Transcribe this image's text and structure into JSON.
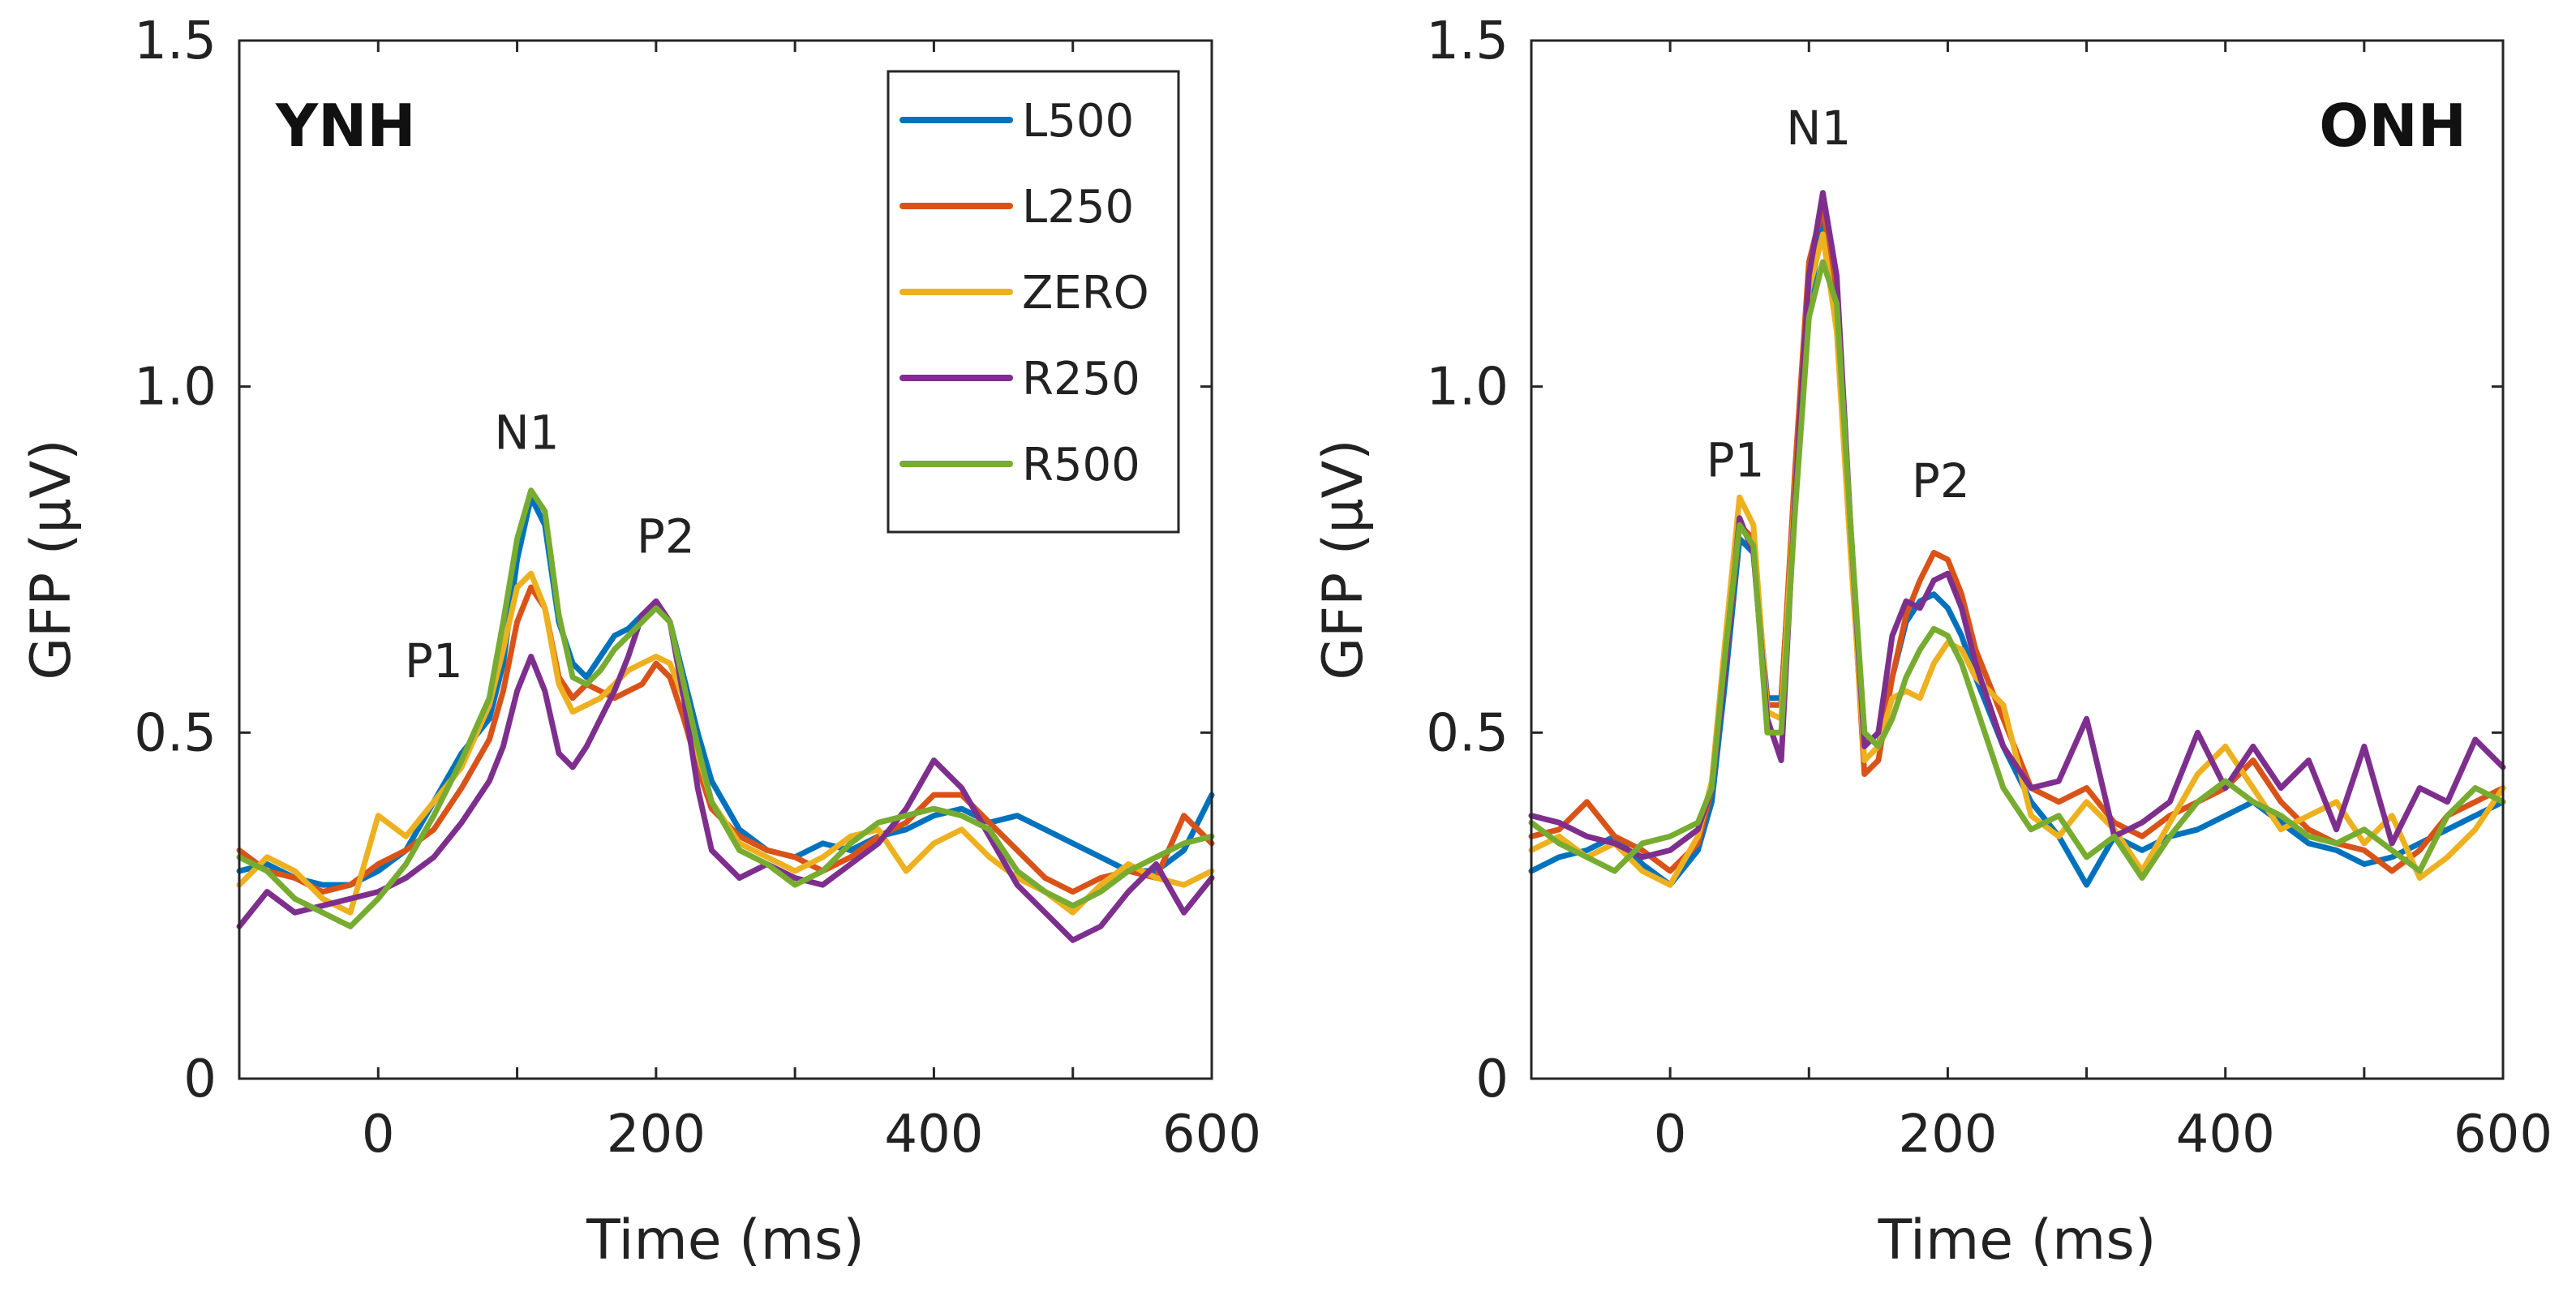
{
  "chart_data": [
    {
      "type": "line",
      "panel_label": "YNH",
      "xlabel": "Time (ms)",
      "ylabel": "GFP (μV)",
      "xlim": [
        -100,
        600
      ],
      "ylim": [
        0,
        1.5
      ],
      "xticks": [
        0,
        200,
        400,
        600
      ],
      "yticks": [
        0,
        0.5,
        1.0,
        1.5
      ],
      "xtick_labels": [
        "0",
        "200",
        "400",
        "600"
      ],
      "ytick_labels": [
        "0",
        "0.5",
        "1.0",
        "1.5"
      ],
      "grid": false,
      "legend": {
        "position": "top-right",
        "entries": [
          "L500",
          "L250",
          "ZERO",
          "R250",
          "R500"
        ]
      },
      "annotations": [
        {
          "text": "N1",
          "x": 107,
          "y": 0.91
        },
        {
          "text": "P2",
          "x": 207,
          "y": 0.76
        },
        {
          "text": "P1",
          "x": 40,
          "y": 0.58
        }
      ],
      "x": [
        -100,
        -80,
        -60,
        -40,
        -20,
        0,
        20,
        40,
        60,
        80,
        90,
        100,
        110,
        120,
        130,
        140,
        150,
        160,
        170,
        180,
        190,
        200,
        210,
        220,
        230,
        240,
        260,
        280,
        300,
        320,
        340,
        360,
        380,
        400,
        420,
        440,
        460,
        480,
        500,
        520,
        540,
        560,
        580,
        600
      ],
      "series": [
        {
          "name": "L500",
          "color": "#0072BD",
          "values": [
            0.3,
            0.31,
            0.29,
            0.28,
            0.28,
            0.3,
            0.33,
            0.4,
            0.47,
            0.52,
            0.6,
            0.75,
            0.84,
            0.8,
            0.66,
            0.6,
            0.58,
            0.61,
            0.64,
            0.65,
            0.67,
            0.68,
            0.66,
            0.58,
            0.5,
            0.43,
            0.36,
            0.33,
            0.32,
            0.34,
            0.33,
            0.35,
            0.36,
            0.38,
            0.39,
            0.37,
            0.38,
            0.36,
            0.34,
            0.32,
            0.3,
            0.3,
            0.33,
            0.41
          ]
        },
        {
          "name": "L250",
          "color": "#D95319",
          "values": [
            0.33,
            0.3,
            0.29,
            0.27,
            0.28,
            0.31,
            0.33,
            0.36,
            0.42,
            0.49,
            0.56,
            0.66,
            0.71,
            0.68,
            0.58,
            0.55,
            0.57,
            0.56,
            0.55,
            0.56,
            0.57,
            0.6,
            0.58,
            0.52,
            0.45,
            0.39,
            0.35,
            0.33,
            0.32,
            0.3,
            0.32,
            0.35,
            0.37,
            0.41,
            0.41,
            0.37,
            0.33,
            0.29,
            0.27,
            0.29,
            0.3,
            0.29,
            0.38,
            0.34
          ]
        },
        {
          "name": "ZERO",
          "color": "#EDB120",
          "values": [
            0.28,
            0.32,
            0.3,
            0.26,
            0.24,
            0.38,
            0.35,
            0.4,
            0.45,
            0.54,
            0.62,
            0.71,
            0.73,
            0.68,
            0.57,
            0.53,
            0.54,
            0.55,
            0.57,
            0.59,
            0.6,
            0.61,
            0.6,
            0.55,
            0.47,
            0.4,
            0.34,
            0.32,
            0.3,
            0.32,
            0.35,
            0.36,
            0.3,
            0.34,
            0.36,
            0.32,
            0.29,
            0.27,
            0.24,
            0.28,
            0.31,
            0.29,
            0.28,
            0.3
          ]
        },
        {
          "name": "R250",
          "color": "#7E2F8E",
          "values": [
            0.22,
            0.27,
            0.24,
            0.25,
            0.26,
            0.27,
            0.29,
            0.32,
            0.37,
            0.43,
            0.48,
            0.56,
            0.61,
            0.56,
            0.47,
            0.45,
            0.48,
            0.52,
            0.56,
            0.61,
            0.67,
            0.69,
            0.66,
            0.55,
            0.42,
            0.33,
            0.29,
            0.31,
            0.29,
            0.28,
            0.31,
            0.34,
            0.39,
            0.46,
            0.42,
            0.35,
            0.28,
            0.24,
            0.2,
            0.22,
            0.27,
            0.31,
            0.24,
            0.29
          ]
        },
        {
          "name": "R500",
          "color": "#77AC30",
          "values": [
            0.32,
            0.3,
            0.26,
            0.24,
            0.22,
            0.26,
            0.31,
            0.38,
            0.46,
            0.55,
            0.66,
            0.78,
            0.85,
            0.82,
            0.67,
            0.58,
            0.57,
            0.59,
            0.62,
            0.64,
            0.66,
            0.68,
            0.66,
            0.57,
            0.48,
            0.4,
            0.33,
            0.31,
            0.28,
            0.3,
            0.34,
            0.37,
            0.38,
            0.39,
            0.38,
            0.36,
            0.3,
            0.27,
            0.25,
            0.27,
            0.3,
            0.32,
            0.34,
            0.35
          ]
        }
      ]
    },
    {
      "type": "line",
      "panel_label": "ONH",
      "xlabel": "Time (ms)",
      "ylabel": "GFP (μV)",
      "xlim": [
        -100,
        600
      ],
      "ylim": [
        0,
        1.5
      ],
      "xticks": [
        0,
        200,
        400,
        600
      ],
      "yticks": [
        0,
        0.5,
        1.0,
        1.5
      ],
      "xtick_labels": [
        "0",
        "200",
        "400",
        "600"
      ],
      "ytick_labels": [
        "0",
        "0.5",
        "1.0",
        "1.5"
      ],
      "grid": false,
      "annotations": [
        {
          "text": "N1",
          "x": 107,
          "y": 1.35
        },
        {
          "text": "P1",
          "x": 47,
          "y": 0.87
        },
        {
          "text": "P2",
          "x": 195,
          "y": 0.84
        }
      ],
      "x": [
        -100,
        -80,
        -60,
        -40,
        -20,
        0,
        20,
        30,
        40,
        50,
        60,
        70,
        80,
        90,
        100,
        110,
        120,
        130,
        140,
        150,
        160,
        170,
        180,
        190,
        200,
        210,
        220,
        240,
        260,
        280,
        300,
        320,
        340,
        360,
        380,
        400,
        420,
        440,
        460,
        480,
        500,
        520,
        540,
        560,
        580,
        600
      ],
      "series": [
        {
          "name": "L500",
          "color": "#0072BD",
          "values": [
            0.3,
            0.32,
            0.33,
            0.35,
            0.31,
            0.28,
            0.33,
            0.4,
            0.58,
            0.78,
            0.76,
            0.55,
            0.55,
            0.85,
            1.12,
            1.24,
            1.1,
            0.78,
            0.5,
            0.48,
            0.58,
            0.66,
            0.69,
            0.7,
            0.68,
            0.64,
            0.58,
            0.48,
            0.4,
            0.35,
            0.28,
            0.35,
            0.33,
            0.35,
            0.36,
            0.38,
            0.4,
            0.37,
            0.34,
            0.33,
            0.31,
            0.32,
            0.34,
            0.36,
            0.38,
            0.4
          ]
        },
        {
          "name": "L250",
          "color": "#D95319",
          "values": [
            0.35,
            0.36,
            0.4,
            0.35,
            0.33,
            0.3,
            0.34,
            0.42,
            0.6,
            0.8,
            0.78,
            0.54,
            0.54,
            0.88,
            1.18,
            1.26,
            1.12,
            0.78,
            0.44,
            0.46,
            0.58,
            0.67,
            0.72,
            0.76,
            0.75,
            0.7,
            0.62,
            0.52,
            0.42,
            0.4,
            0.42,
            0.37,
            0.35,
            0.38,
            0.4,
            0.42,
            0.46,
            0.4,
            0.36,
            0.34,
            0.33,
            0.3,
            0.33,
            0.38,
            0.4,
            0.42
          ]
        },
        {
          "name": "ZERO",
          "color": "#EDB120",
          "values": [
            0.33,
            0.35,
            0.32,
            0.34,
            0.3,
            0.28,
            0.35,
            0.43,
            0.64,
            0.84,
            0.8,
            0.53,
            0.52,
            0.85,
            1.14,
            1.22,
            1.08,
            0.76,
            0.46,
            0.48,
            0.55,
            0.56,
            0.55,
            0.6,
            0.63,
            0.62,
            0.58,
            0.54,
            0.38,
            0.35,
            0.4,
            0.36,
            0.3,
            0.37,
            0.44,
            0.48,
            0.42,
            0.36,
            0.38,
            0.4,
            0.34,
            0.38,
            0.29,
            0.32,
            0.36,
            0.42
          ]
        },
        {
          "name": "R250",
          "color": "#7E2F8E",
          "values": [
            0.38,
            0.37,
            0.35,
            0.34,
            0.32,
            0.33,
            0.36,
            0.42,
            0.6,
            0.81,
            0.76,
            0.52,
            0.46,
            0.84,
            1.16,
            1.28,
            1.16,
            0.8,
            0.48,
            0.5,
            0.64,
            0.69,
            0.68,
            0.72,
            0.73,
            0.68,
            0.6,
            0.48,
            0.42,
            0.43,
            0.52,
            0.35,
            0.37,
            0.4,
            0.5,
            0.42,
            0.48,
            0.42,
            0.46,
            0.36,
            0.48,
            0.34,
            0.42,
            0.4,
            0.49,
            0.45
          ]
        },
        {
          "name": "R500",
          "color": "#77AC30",
          "values": [
            0.37,
            0.34,
            0.32,
            0.3,
            0.34,
            0.35,
            0.37,
            0.42,
            0.62,
            0.8,
            0.77,
            0.5,
            0.5,
            0.82,
            1.1,
            1.18,
            1.12,
            0.8,
            0.5,
            0.48,
            0.52,
            0.58,
            0.62,
            0.65,
            0.64,
            0.6,
            0.54,
            0.42,
            0.36,
            0.38,
            0.32,
            0.35,
            0.29,
            0.35,
            0.4,
            0.43,
            0.4,
            0.38,
            0.35,
            0.34,
            0.36,
            0.33,
            0.3,
            0.38,
            0.42,
            0.4
          ]
        }
      ]
    }
  ]
}
